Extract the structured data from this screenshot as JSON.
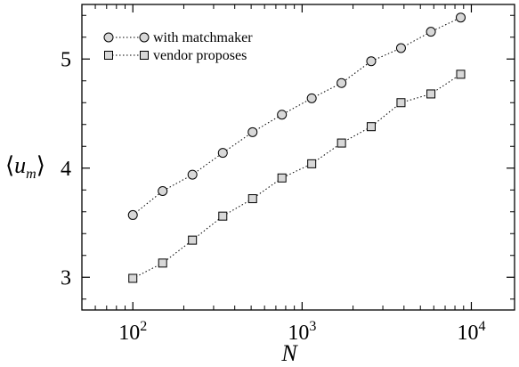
{
  "chart_data": {
    "type": "scatter",
    "xscale": "log",
    "xlim": [
      50,
      18000
    ],
    "ylim": [
      2.7,
      5.5
    ],
    "xlabel": "N",
    "ylabel": {
      "main": "u",
      "sub": "m"
    },
    "grid": false,
    "legend_position": "top-left",
    "x_ticks": [
      {
        "value": 100,
        "base": "10",
        "exp": "2"
      },
      {
        "value": 1000,
        "base": "10",
        "exp": "3"
      },
      {
        "value": 10000,
        "base": "10",
        "exp": "4"
      }
    ],
    "y_ticks": [
      {
        "value": 3,
        "label": "3"
      },
      {
        "value": 4,
        "label": "4"
      },
      {
        "value": 5,
        "label": "5"
      }
    ],
    "series": [
      {
        "name": "with matchmaker",
        "marker": "circle",
        "color": "#d8d8d8",
        "x": [
          100,
          150,
          225,
          340,
          510,
          760,
          1140,
          1710,
          2560,
          3840,
          5770,
          8650
        ],
        "y": [
          3.57,
          3.79,
          3.94,
          4.14,
          4.33,
          4.49,
          4.64,
          4.78,
          4.98,
          5.1,
          5.25,
          5.38
        ]
      },
      {
        "name": "vendor proposes",
        "marker": "square",
        "color": "#d8d8d8",
        "x": [
          100,
          150,
          225,
          340,
          510,
          760,
          1140,
          1710,
          2560,
          3840,
          5770,
          8650
        ],
        "y": [
          2.99,
          3.13,
          3.34,
          3.56,
          3.72,
          3.91,
          4.04,
          4.23,
          4.38,
          4.6,
          4.68,
          4.86
        ]
      }
    ]
  }
}
